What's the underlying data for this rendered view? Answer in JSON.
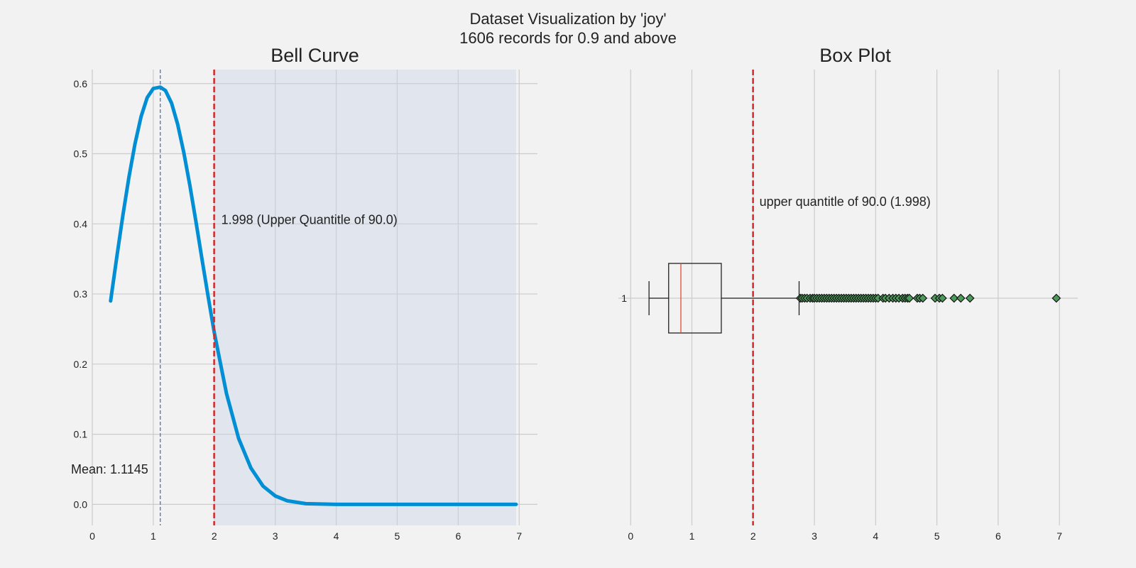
{
  "figure": {
    "title_line1": "Dataset Visualization by 'joy'",
    "title_line2": "1606 records for 0.9 and above",
    "background": "#f2f2f2"
  },
  "chart_data": [
    {
      "type": "line",
      "title": "Bell Curve",
      "xlim": [
        0,
        7.3
      ],
      "ylim": [
        -0.03,
        0.62
      ],
      "xticks": [
        0,
        1,
        2,
        3,
        4,
        5,
        6,
        7
      ],
      "xtick_labels": [
        "0",
        "1",
        "2",
        "3",
        "4",
        "5",
        "6",
        "7"
      ],
      "yticks": [
        0.0,
        0.1,
        0.2,
        0.3,
        0.4,
        0.5,
        0.6
      ],
      "ytick_labels": [
        "0.0",
        "0.1",
        "0.2",
        "0.3",
        "0.4",
        "0.5",
        "0.6"
      ],
      "grid": true,
      "series": [
        {
          "values_description": "normal pdf",
          "x": [
            0.3,
            0.4,
            0.5,
            0.6,
            0.7,
            0.8,
            0.9,
            1.0,
            1.1145,
            1.2,
            1.3,
            1.4,
            1.5,
            1.6,
            1.7,
            1.8,
            1.9,
            2.0,
            2.2,
            2.4,
            2.6,
            2.8,
            3.0,
            3.2,
            3.5,
            4.0,
            5.0,
            6.0,
            6.95
          ],
          "y": [
            0.29,
            0.352,
            0.411,
            0.466,
            0.514,
            0.553,
            0.58,
            0.593,
            0.595,
            0.59,
            0.572,
            0.542,
            0.502,
            0.455,
            0.403,
            0.349,
            0.296,
            0.245,
            0.158,
            0.094,
            0.052,
            0.026,
            0.012,
            0.005,
            0.001,
            0.0,
            0.0,
            0.0,
            0.0
          ],
          "color": "#008fd5"
        }
      ],
      "mean_value": 1.1145,
      "mean_label": "Mean: 1.1145",
      "mean_color": "#4c72b0",
      "upper_quantile_value": 1.998,
      "upper_quantile_label": "1.998 (Upper Quantitle of 90.0)",
      "quantile_color": "#d62728",
      "shaded_region": [
        1.998,
        6.95
      ],
      "shade_color": "#c8d3e6"
    },
    {
      "type": "box",
      "title": "Box Plot",
      "xlim": [
        -0.2,
        7.3
      ],
      "xticks": [
        0,
        1,
        2,
        3,
        4,
        5,
        6,
        7
      ],
      "xtick_labels": [
        "0",
        "1",
        "2",
        "3",
        "4",
        "5",
        "6",
        "7"
      ],
      "ytick_labels": [
        "1"
      ],
      "grid": true,
      "box": {
        "whisker_low": 0.3,
        "q1": 0.62,
        "median": 0.82,
        "q3": 1.48,
        "whisker_high": 2.75
      },
      "outliers": [
        2.77,
        2.8,
        2.84,
        2.88,
        2.93,
        2.97,
        3.0,
        3.04,
        3.08,
        3.12,
        3.16,
        3.2,
        3.24,
        3.28,
        3.32,
        3.36,
        3.4,
        3.44,
        3.48,
        3.52,
        3.56,
        3.6,
        3.64,
        3.68,
        3.72,
        3.76,
        3.8,
        3.84,
        3.88,
        3.92,
        3.96,
        4.0,
        4.04,
        4.12,
        4.16,
        4.22,
        4.28,
        4.33,
        4.38,
        4.44,
        4.48,
        4.52,
        4.55,
        4.68,
        4.72,
        4.77,
        4.97,
        5.04,
        5.09,
        5.28,
        5.39,
        5.54,
        6.95
      ],
      "outlier_color": "#4c9a5a",
      "median_color": "#e24a33",
      "upper_quantile_value": 1.998,
      "upper_quantile_label": "upper quantitle of 90.0 (1.998)",
      "quantile_color": "#d62728"
    }
  ]
}
